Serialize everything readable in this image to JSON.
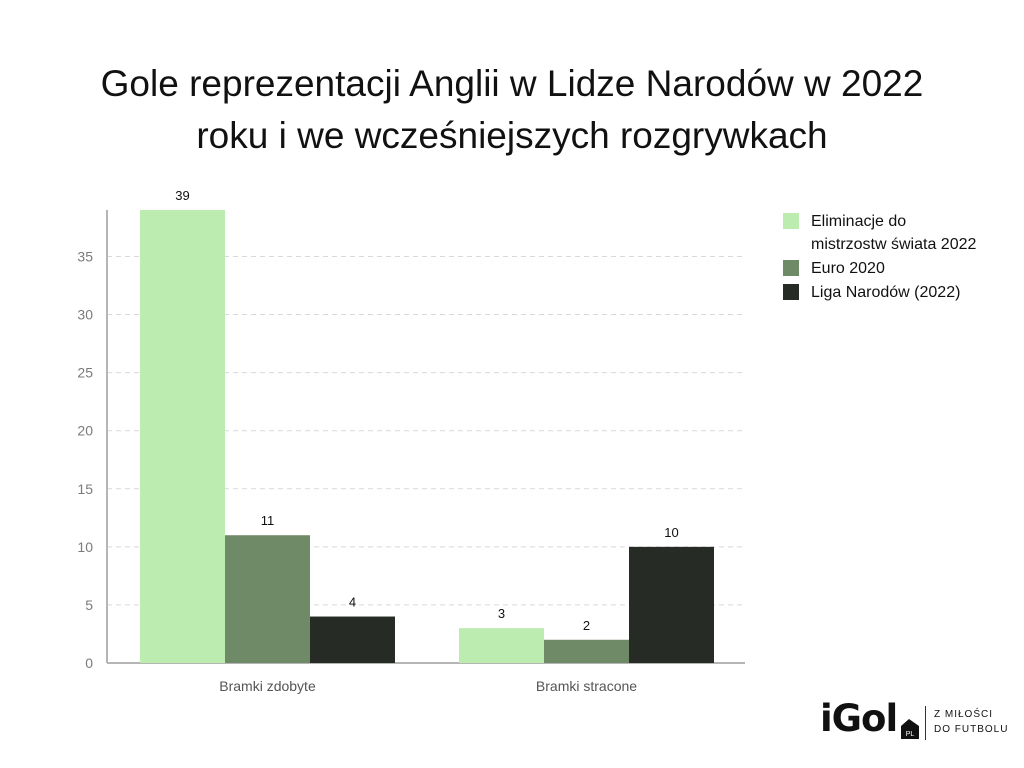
{
  "chart_data": {
    "type": "bar",
    "title": "Gole reprezentacji Anglii w Lidze Narodów w 2022 roku i we wcześniejszych rozgrywkach",
    "categories": [
      "Bramki zdobyte",
      "Bramki stracone"
    ],
    "series": [
      {
        "name": "Eliminacje do mistrzostw świata 2022",
        "values": [
          39,
          3
        ],
        "color": "#bcecb0"
      },
      {
        "name": "Euro 2020",
        "values": [
          11,
          2
        ],
        "color": "#6f8a67"
      },
      {
        "name": "Liga Narodów (2022)",
        "values": [
          4,
          10
        ],
        "color": "#272b26"
      }
    ],
    "ylim": [
      0,
      39
    ],
    "yticks": [
      0,
      5,
      10,
      15,
      20,
      25,
      30,
      35
    ],
    "grid": true,
    "legend": "right"
  },
  "branding": {
    "logo": "iGol",
    "logo_suffix": "PL",
    "tagline_line1": "Z MIŁOŚCI",
    "tagline_line2": "DO FUTBOLU"
  }
}
